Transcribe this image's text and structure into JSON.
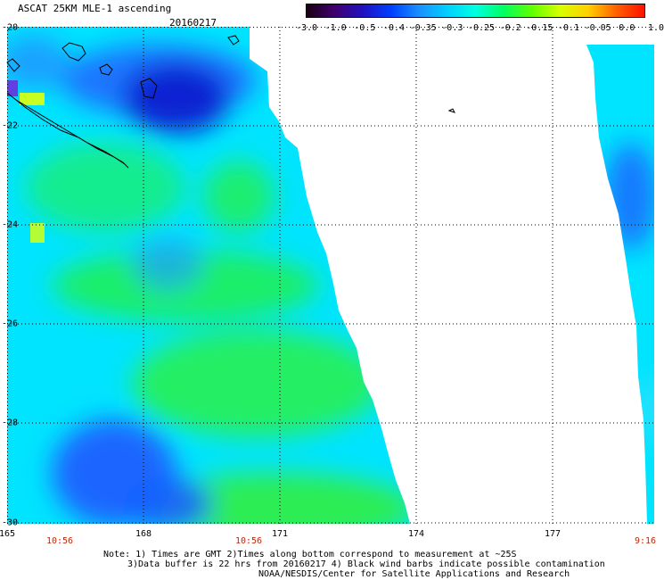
{
  "header": {
    "title": "ASCAT 25KM MLE-1 ascending",
    "date": "20160217"
  },
  "colorbar": {
    "ticks": [
      "-3.0",
      "-1.0",
      "-0.5",
      "-0.4",
      "-0.35",
      "-0.3",
      "-0.25",
      "-0.2",
      "-0.15",
      "-0.1",
      "-0.05",
      "0.0",
      "1.0"
    ],
    "colors": [
      "#1a0010",
      "#400070",
      "#2010c0",
      "#0040ff",
      "#1a90ff",
      "#00d0ff",
      "#00ffe0",
      "#00ff60",
      "#60ff00",
      "#d8ff00",
      "#ffd000",
      "#ff6000",
      "#ff1000"
    ]
  },
  "axes": {
    "lat_labels": [
      "-20",
      "-22",
      "-24",
      "-26",
      "-28",
      "-30"
    ],
    "lon_labels": [
      "165",
      "168",
      "171",
      "174",
      "177"
    ],
    "time_labels": [
      "10:56",
      "10:56",
      "9:16"
    ]
  },
  "notes": {
    "line1": "Note: 1) Times are GMT 2)Times along bottom correspond to measurement at ~25S",
    "line2": "3)Data buffer is 22 hrs from 20160217 4) Black wind barbs indicate possible contamination",
    "line3": "NOAA/NESDIS/Center for Satellite Applications and Research"
  },
  "theme": {
    "swath_base": "#00e0ff",
    "green": "#30ee40",
    "blue": "#1a70ff",
    "deep_blue": "#0a20d0",
    "grid": "#000000"
  }
}
